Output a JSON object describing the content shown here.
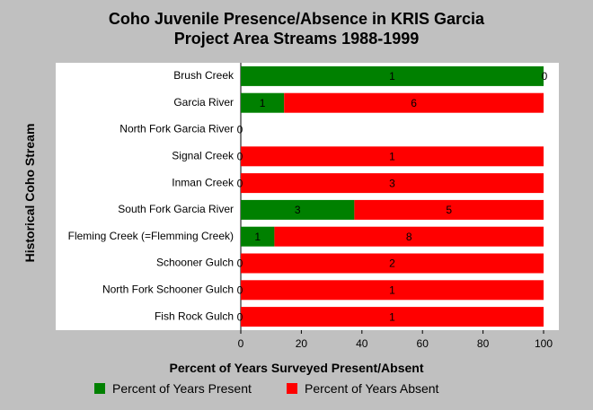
{
  "chart_data": {
    "type": "bar",
    "orientation": "horizontal",
    "stacked": true,
    "title_lines": [
      "Coho Juvenile Presence/Absence in KRIS Garcia",
      "Project Area Streams 1988-1999"
    ],
    "xlabel": "Percent of Years Surveyed Present/Absent",
    "ylabel": "Historical Coho Stream",
    "xlim": [
      0,
      100
    ],
    "xticks": [
      0,
      20,
      40,
      60,
      80,
      100
    ],
    "categories": [
      "Brush Creek",
      "Garcia River",
      "North Fork Garcia River",
      "Signal Creek",
      "Inman Creek",
      "South Fork Garcia River",
      "Fleming Creek (=Flemming Creek)",
      "Schooner Gulch",
      "North Fork Schooner Gulch",
      "Fish Rock Gulch"
    ],
    "series": [
      {
        "name": "Percent of Years Present",
        "color": "#008000",
        "values": [
          100,
          14.3,
          0,
          0,
          0,
          37.5,
          11.1,
          0,
          0,
          0
        ],
        "counts": [
          "1",
          "1",
          "0",
          "0",
          "0",
          "3",
          "1",
          "0",
          "0",
          "0"
        ]
      },
      {
        "name": "Percent of Years Absent",
        "color": "#ff0000",
        "values": [
          0,
          85.7,
          0,
          100,
          100,
          62.5,
          88.9,
          100,
          100,
          100
        ],
        "counts": [
          "0",
          "6",
          "",
          "1",
          "3",
          "5",
          "8",
          "2",
          "1",
          "1"
        ]
      }
    ],
    "grid": false,
    "legend_position": "bottom"
  }
}
